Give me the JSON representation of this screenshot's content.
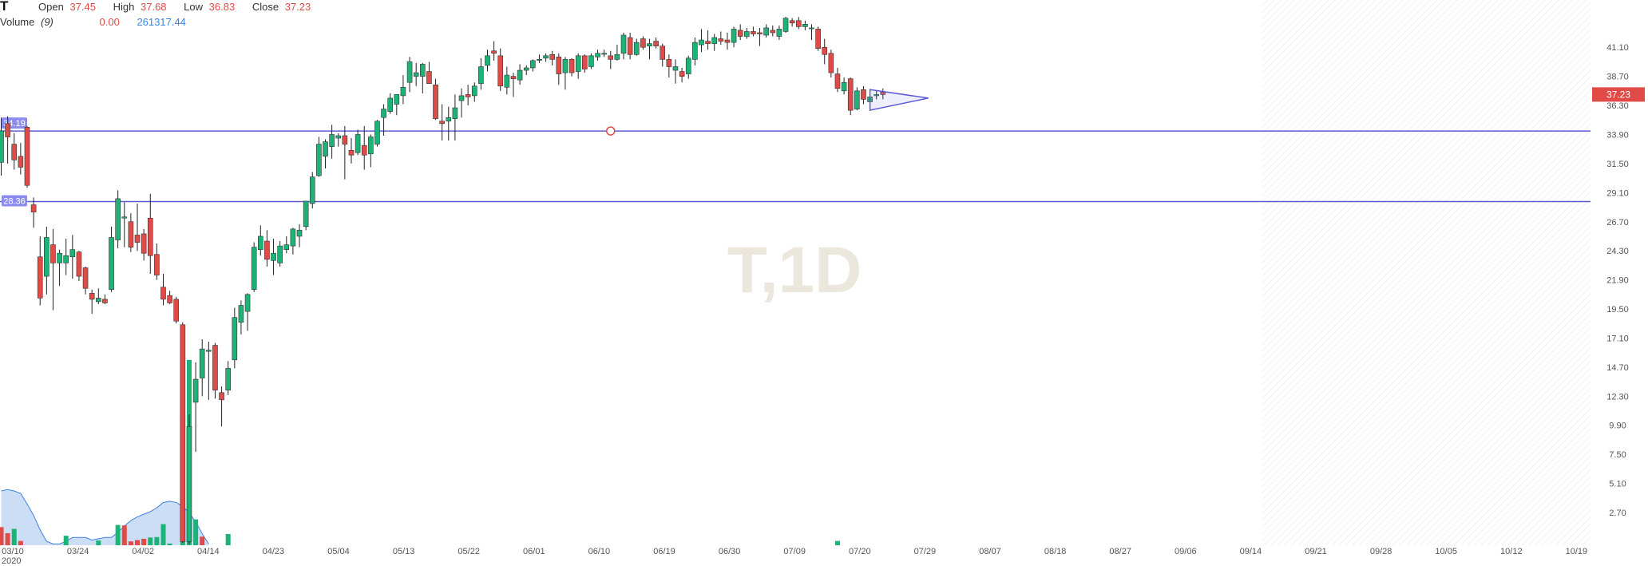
{
  "header": {
    "symbol": "T",
    "open_label": "Open",
    "open_value": "37.45",
    "high_label": "High",
    "high_value": "37.68",
    "low_label": "Low",
    "low_value": "36.83",
    "close_label": "Close",
    "close_value": "37.23",
    "volume_label": "Volume",
    "volume_period": "(9)",
    "volume_value_1": "0.00",
    "volume_value_2": "261317.44"
  },
  "watermark": "T,1D",
  "colors": {
    "up": "#1db376",
    "down": "#e04b47",
    "level_line": "#5b5bd6",
    "volume_ma_fill": "#b9d3f2",
    "volume_ma_line": "#3d82e0",
    "price_tag": "#e04b47",
    "watermark": "#ece7dd"
  },
  "price_tag": "37.23",
  "year_label": "2020",
  "chart_data": {
    "type": "candlestick",
    "ylim": [
      0,
      45.0
    ],
    "y_ticks": [
      "41.10",
      "38.70",
      "36.30",
      "33.90",
      "31.50",
      "29.10",
      "26.70",
      "24.30",
      "21.90",
      "19.50",
      "17.10",
      "14.70",
      "12.30",
      "9.90",
      "7.50",
      "5.10",
      "2.70"
    ],
    "x_tick_labels": [
      "03/10",
      "03/24",
      "04/02",
      "04/14",
      "04/23",
      "05/04",
      "05/13",
      "05/22",
      "06/01",
      "06/10",
      "06/19",
      "06/30",
      "07/09",
      "07/20",
      "07/29",
      "08/07",
      "08/18",
      "08/27",
      "09/06",
      "09/14",
      "09/21",
      "09/28",
      "10/05",
      "10/12",
      "10/19"
    ],
    "horizontal_levels": [
      {
        "label": "34.19",
        "value": 34.19
      },
      {
        "label": "28.36",
        "value": 28.36
      }
    ],
    "candles": [
      [
        31.6,
        35.3,
        30.5,
        34.2
      ],
      [
        34.8,
        35.4,
        31.5,
        33.7
      ],
      [
        33.1,
        34.0,
        31.0,
        31.8
      ],
      [
        32.1,
        33.2,
        30.6,
        31.2
      ],
      [
        34.5,
        34.6,
        29.5,
        29.7
      ],
      [
        28.1,
        28.7,
        26.2,
        27.5
      ],
      [
        23.8,
        25.5,
        19.8,
        20.4
      ],
      [
        22.2,
        26.3,
        20.7,
        25.4
      ],
      [
        24.8,
        26.1,
        19.4,
        23.3
      ],
      [
        23.3,
        24.4,
        21.4,
        24.1
      ],
      [
        23.3,
        25.3,
        22.3,
        23.9
      ],
      [
        23.8,
        25.6,
        22.0,
        24.4
      ],
      [
        24.2,
        24.3,
        21.8,
        22.2
      ],
      [
        22.9,
        23.0,
        20.7,
        21.2
      ],
      [
        20.8,
        21.1,
        19.1,
        20.3
      ],
      [
        20.1,
        21.2,
        19.9,
        20.4
      ],
      [
        20.3,
        20.7,
        19.9,
        20.0
      ],
      [
        21.1,
        26.3,
        20.9,
        25.4
      ],
      [
        25.2,
        29.3,
        24.5,
        28.6
      ],
      [
        27.0,
        28.3,
        24.6,
        27.1
      ],
      [
        26.7,
        27.4,
        24.2,
        24.6
      ],
      [
        25.6,
        28.2,
        24.3,
        25.0
      ],
      [
        25.7,
        26.1,
        23.5,
        24.1
      ],
      [
        27.0,
        29.0,
        22.4,
        23.9
      ],
      [
        24.0,
        24.9,
        21.9,
        22.3
      ],
      [
        21.3,
        22.4,
        19.8,
        20.3
      ],
      [
        20.6,
        21.0,
        19.9,
        20.0
      ],
      [
        20.3,
        20.5,
        18.3,
        18.5
      ],
      [
        18.2,
        18.4,
        0.2,
        0.3
      ],
      [
        0.3,
        10.8,
        0.1,
        9.8
      ],
      [
        11.8,
        15.1,
        7.7,
        13.7
      ],
      [
        13.8,
        17.0,
        12.3,
        16.2
      ],
      [
        16.0,
        16.8,
        12.0,
        16.1
      ],
      [
        16.5,
        16.7,
        12.1,
        12.8
      ],
      [
        12.6,
        13.1,
        9.8,
        12.0
      ],
      [
        12.8,
        15.2,
        12.4,
        14.6
      ],
      [
        15.3,
        19.6,
        14.6,
        18.8
      ],
      [
        18.4,
        20.2,
        17.4,
        19.8
      ],
      [
        19.3,
        20.8,
        17.7,
        20.7
      ],
      [
        21.1,
        25.0,
        20.9,
        24.6
      ],
      [
        24.4,
        26.4,
        23.9,
        25.5
      ],
      [
        25.1,
        26.0,
        23.0,
        23.6
      ],
      [
        23.5,
        25.3,
        22.3,
        24.1
      ],
      [
        23.3,
        25.1,
        23.0,
        24.7
      ],
      [
        24.4,
        25.5,
        24.1,
        24.8
      ],
      [
        24.7,
        26.2,
        24.0,
        26.1
      ],
      [
        25.5,
        26.5,
        24.6,
        26.0
      ],
      [
        26.3,
        28.4,
        26.0,
        28.4
      ],
      [
        28.2,
        30.8,
        27.8,
        30.4
      ],
      [
        30.5,
        33.7,
        30.4,
        33.1
      ],
      [
        32.1,
        33.5,
        31.1,
        33.3
      ],
      [
        32.9,
        34.7,
        31.9,
        33.9
      ],
      [
        33.6,
        34.0,
        32.9,
        33.8
      ],
      [
        33.8,
        34.6,
        30.2,
        33.1
      ],
      [
        32.6,
        33.6,
        31.5,
        32.2
      ],
      [
        32.4,
        34.3,
        32.2,
        33.9
      ],
      [
        33.0,
        34.6,
        31.0,
        32.2
      ],
      [
        32.3,
        33.9,
        31.2,
        33.7
      ],
      [
        33.1,
        35.1,
        32.9,
        35.0
      ],
      [
        35.3,
        36.4,
        33.8,
        36.0
      ],
      [
        35.8,
        37.3,
        35.6,
        36.9
      ],
      [
        36.4,
        37.0,
        35.5,
        37.2
      ],
      [
        37.1,
        38.8,
        36.4,
        37.8
      ],
      [
        38.2,
        40.3,
        37.4,
        39.9
      ],
      [
        38.7,
        39.8,
        37.9,
        39.0
      ],
      [
        38.7,
        39.8,
        37.3,
        39.7
      ],
      [
        39.1,
        39.9,
        38.1,
        38.1
      ],
      [
        38.0,
        38.5,
        35.1,
        35.2
      ],
      [
        35.0,
        36.4,
        33.4,
        34.8
      ],
      [
        35.0,
        36.2,
        33.4,
        35.3
      ],
      [
        35.2,
        37.2,
        33.4,
        36.1
      ],
      [
        36.7,
        37.7,
        35.3,
        37.1
      ],
      [
        37.2,
        38.0,
        36.3,
        37.0
      ],
      [
        37.1,
        38.2,
        36.6,
        37.9
      ],
      [
        38.1,
        40.2,
        37.6,
        39.5
      ],
      [
        39.6,
        40.9,
        39.1,
        40.4
      ],
      [
        40.8,
        41.6,
        40.0,
        40.6
      ],
      [
        40.4,
        41.0,
        37.5,
        37.9
      ],
      [
        37.8,
        39.5,
        37.2,
        38.8
      ],
      [
        38.7,
        39.0,
        37.0,
        38.5
      ],
      [
        38.4,
        39.7,
        38.0,
        39.2
      ],
      [
        39.2,
        39.6,
        38.8,
        39.4
      ],
      [
        39.4,
        40.1,
        39.1,
        40.0
      ],
      [
        40.1,
        40.5,
        39.8,
        40.1
      ],
      [
        40.2,
        40.6,
        39.9,
        40.4
      ],
      [
        40.5,
        40.8,
        39.6,
        40.1
      ],
      [
        40.3,
        40.6,
        38.0,
        38.9
      ],
      [
        39.0,
        40.3,
        37.6,
        40.1
      ],
      [
        40.1,
        40.2,
        38.7,
        39.0
      ],
      [
        39.1,
        40.6,
        38.5,
        40.4
      ],
      [
        40.4,
        40.5,
        39.0,
        39.3
      ],
      [
        39.5,
        40.6,
        39.3,
        40.4
      ],
      [
        40.3,
        40.9,
        40.0,
        40.6
      ],
      [
        40.6,
        40.9,
        40.3,
        40.6
      ],
      [
        40.4,
        40.8,
        39.3,
        40.1
      ],
      [
        40.1,
        41.3,
        40.0,
        40.5
      ],
      [
        40.6,
        42.3,
        40.1,
        42.1
      ],
      [
        41.9,
        42.3,
        40.1,
        40.5
      ],
      [
        40.5,
        41.8,
        40.4,
        41.5
      ],
      [
        41.8,
        42.0,
        40.9,
        41.1
      ],
      [
        41.2,
        41.8,
        40.1,
        41.4
      ],
      [
        41.6,
        41.9,
        41.0,
        41.2
      ],
      [
        41.2,
        41.4,
        39.5,
        40.1
      ],
      [
        40.1,
        40.5,
        38.6,
        39.5
      ],
      [
        39.2,
        40.1,
        38.1,
        39.5
      ],
      [
        39.1,
        39.4,
        38.2,
        38.7
      ],
      [
        38.9,
        40.4,
        38.5,
        40.2
      ],
      [
        40.1,
        41.9,
        39.6,
        41.5
      ],
      [
        41.3,
        42.6,
        40.7,
        41.7
      ],
      [
        41.6,
        42.5,
        40.9,
        41.4
      ],
      [
        41.4,
        42.2,
        40.8,
        41.9
      ],
      [
        41.8,
        42.4,
        41.3,
        41.6
      ],
      [
        41.7,
        42.3,
        40.9,
        41.5
      ],
      [
        41.5,
        42.8,
        41.1,
        42.6
      ],
      [
        42.5,
        43.0,
        41.7,
        42.0
      ],
      [
        42.0,
        42.7,
        41.8,
        42.4
      ],
      [
        42.4,
        42.8,
        42.0,
        42.2
      ],
      [
        42.3,
        42.7,
        41.2,
        42.2
      ],
      [
        42.1,
        43.0,
        41.9,
        42.7
      ],
      [
        42.5,
        42.9,
        42.0,
        42.3
      ],
      [
        42.0,
        42.9,
        41.7,
        42.6
      ],
      [
        42.4,
        43.6,
        42.3,
        43.5
      ],
      [
        43.3,
        43.5,
        42.8,
        43.1
      ],
      [
        43.3,
        43.6,
        42.6,
        42.8
      ],
      [
        42.8,
        43.3,
        42.5,
        43.0
      ],
      [
        42.7,
        43.0,
        41.7,
        42.7
      ],
      [
        42.6,
        42.8,
        40.8,
        41.0
      ],
      [
        41.1,
        41.8,
        39.7,
        40.5
      ],
      [
        40.6,
        40.9,
        38.6,
        39.0
      ],
      [
        38.9,
        39.4,
        37.4,
        37.7
      ],
      [
        37.5,
        38.6,
        37.2,
        38.2
      ],
      [
        38.5,
        38.6,
        35.5,
        35.9
      ],
      [
        36.0,
        37.8,
        35.9,
        37.5
      ],
      [
        37.6,
        37.9,
        36.4,
        36.8
      ],
      [
        36.6,
        37.3,
        36.4,
        37.0
      ],
      [
        37.1,
        37.5,
        36.8,
        37.2
      ],
      [
        37.4,
        37.7,
        36.8,
        37.2
      ]
    ],
    "volume": [
      {
        "v": 4.2,
        "up": false
      },
      {
        "v": 2.8,
        "up": false
      },
      {
        "v": 3.8,
        "up": true
      },
      {
        "v": 1.0,
        "up": false
      },
      {
        "v": 0.1,
        "up": true
      },
      {
        "v": 0.1,
        "up": true
      },
      {
        "v": 0.1,
        "up": true
      },
      {
        "v": 0.1,
        "up": true
      },
      {
        "v": 0.1,
        "up": true
      },
      {
        "v": 0.1,
        "up": true
      },
      {
        "v": 2.2,
        "up": true
      },
      {
        "v": 0.2,
        "up": false
      },
      {
        "v": 0.1,
        "up": true
      },
      {
        "v": 0.1,
        "up": true
      },
      {
        "v": 0.1,
        "up": true
      },
      {
        "v": 1.1,
        "up": true
      },
      {
        "v": 0.1,
        "up": true
      },
      {
        "v": 0.1,
        "up": true
      },
      {
        "v": 4.7,
        "up": true
      },
      {
        "v": 4.6,
        "up": false
      },
      {
        "v": 0.9,
        "up": false
      },
      {
        "v": 1.2,
        "up": false
      },
      {
        "v": 1.5,
        "up": false
      },
      {
        "v": 1.8,
        "up": true
      },
      {
        "v": 1.9,
        "up": true
      },
      {
        "v": 4.9,
        "up": true
      },
      {
        "v": 0.4,
        "up": true
      },
      {
        "v": 0.1,
        "up": true
      },
      {
        "v": 44.0,
        "up": true
      },
      {
        "v": 43.0,
        "up": true
      },
      {
        "v": 6.0,
        "up": true
      },
      {
        "v": 2.0,
        "up": false
      },
      {
        "v": 0.1,
        "up": true
      },
      {
        "v": 0.1,
        "up": true
      },
      {
        "v": 0.1,
        "up": true
      },
      {
        "v": 2.6,
        "up": true
      },
      {
        "v": 0.1,
        "up": true
      },
      {
        "v": 0.1,
        "up": true
      },
      {
        "v": 0.1,
        "up": true
      },
      {
        "v": 0.1,
        "up": true
      },
      {
        "v": 0.1,
        "up": true
      },
      {
        "v": 0.1,
        "up": true
      },
      {
        "v": 0.1,
        "up": true
      },
      {
        "v": 0.1,
        "up": true
      },
      {
        "v": 0.1,
        "up": true
      },
      {
        "v": 0.1,
        "up": true
      },
      {
        "v": 0.1,
        "up": true
      },
      {
        "v": 0.1,
        "up": true
      },
      {
        "v": 0.1,
        "up": true
      },
      {
        "v": 0.1,
        "up": true
      },
      {
        "v": 0.1,
        "up": true
      },
      {
        "v": 0.1,
        "up": true
      },
      {
        "v": 0.1,
        "up": true
      },
      {
        "v": 0.1,
        "up": true
      },
      {
        "v": 0.1,
        "up": true
      },
      {
        "v": 0.1,
        "up": true
      },
      {
        "v": 0.1,
        "up": true
      },
      {
        "v": 0.1,
        "up": true
      },
      {
        "v": 0.1,
        "up": true
      },
      {
        "v": 0.1,
        "up": true
      },
      {
        "v": 0.1,
        "up": true
      },
      {
        "v": 0.1,
        "up": true
      },
      {
        "v": 0.1,
        "up": true
      },
      {
        "v": 0.1,
        "up": true
      },
      {
        "v": 0.1,
        "up": true
      },
      {
        "v": 0.1,
        "up": true
      },
      {
        "v": 0.1,
        "up": true
      },
      {
        "v": 0.1,
        "up": true
      },
      {
        "v": 0.1,
        "up": true
      },
      {
        "v": 0.1,
        "up": true
      },
      {
        "v": 0.1,
        "up": true
      },
      {
        "v": 0.1,
        "up": true
      },
      {
        "v": 0.1,
        "up": true
      },
      {
        "v": 0.1,
        "up": true
      },
      {
        "v": 0.1,
        "up": true
      },
      {
        "v": 0.1,
        "up": true
      },
      {
        "v": 0.1,
        "up": true
      },
      {
        "v": 0.1,
        "up": true
      },
      {
        "v": 0.1,
        "up": true
      },
      {
        "v": 0.1,
        "up": true
      },
      {
        "v": 0.1,
        "up": true
      },
      {
        "v": 0.1,
        "up": true
      },
      {
        "v": 0.1,
        "up": true
      },
      {
        "v": 0.1,
        "up": true
      },
      {
        "v": 0.1,
        "up": true
      },
      {
        "v": 0.1,
        "up": true
      },
      {
        "v": 0.1,
        "up": true
      },
      {
        "v": 0.1,
        "up": true
      },
      {
        "v": 0.1,
        "up": true
      },
      {
        "v": 0.1,
        "up": true
      },
      {
        "v": 0.1,
        "up": true
      },
      {
        "v": 0.1,
        "up": true
      },
      {
        "v": 0.1,
        "up": true
      },
      {
        "v": 0.1,
        "up": true
      },
      {
        "v": 0.1,
        "up": true
      },
      {
        "v": 0.1,
        "up": true
      },
      {
        "v": 0.1,
        "up": true
      },
      {
        "v": 0.1,
        "up": true
      },
      {
        "v": 0.1,
        "up": true
      },
      {
        "v": 0.1,
        "up": true
      },
      {
        "v": 0.1,
        "up": true
      },
      {
        "v": 0.1,
        "up": true
      },
      {
        "v": 0.1,
        "up": true
      },
      {
        "v": 0.1,
        "up": true
      },
      {
        "v": 0.1,
        "up": true
      },
      {
        "v": 0.1,
        "up": true
      },
      {
        "v": 0.1,
        "up": true
      },
      {
        "v": 0.1,
        "up": true
      },
      {
        "v": 0.1,
        "up": true
      },
      {
        "v": 0.1,
        "up": true
      },
      {
        "v": 0.1,
        "up": true
      },
      {
        "v": 0.1,
        "up": true
      },
      {
        "v": 0.1,
        "up": true
      },
      {
        "v": 0.1,
        "up": true
      },
      {
        "v": 0.1,
        "up": true
      },
      {
        "v": 0.1,
        "up": true
      },
      {
        "v": 0.1,
        "up": true
      },
      {
        "v": 0.1,
        "up": true
      },
      {
        "v": 0.1,
        "up": true
      },
      {
        "v": 0.1,
        "up": true
      },
      {
        "v": 0.1,
        "up": true
      },
      {
        "v": 0.1,
        "up": true
      },
      {
        "v": 0.1,
        "up": true
      },
      {
        "v": 0.1,
        "up": true
      },
      {
        "v": 0.1,
        "up": true
      },
      {
        "v": 0.1,
        "up": true
      },
      {
        "v": 0.1,
        "up": true
      },
      {
        "v": 0.1,
        "up": true
      },
      {
        "v": 0.1,
        "up": true
      },
      {
        "v": 1.0,
        "up": true
      },
      {
        "v": 0.1,
        "up": true
      },
      {
        "v": 0.1,
        "up": true
      },
      {
        "v": 0.1,
        "up": true
      },
      {
        "v": 0.1,
        "up": true
      }
    ],
    "volume_ma": [
      4.2,
      4.3,
      4.2,
      4.0,
      3.2,
      2.3,
      1.2,
      0.3,
      0.1,
      0.1,
      0.3,
      0.6,
      0.6,
      0.6,
      0.4,
      0.5,
      0.6,
      0.6,
      1.0,
      1.5,
      1.9,
      2.2,
      2.4,
      2.6,
      2.9,
      3.3,
      3.4,
      3.3,
      3.0,
      2.5,
      1.8,
      0.9,
      0.1
    ],
    "triangle_pattern": [
      [
        134,
        37.6
      ],
      [
        143,
        36.9
      ],
      [
        134,
        35.9
      ]
    ],
    "crosshair_marker": {
      "index": 94,
      "value": 34.19
    }
  }
}
